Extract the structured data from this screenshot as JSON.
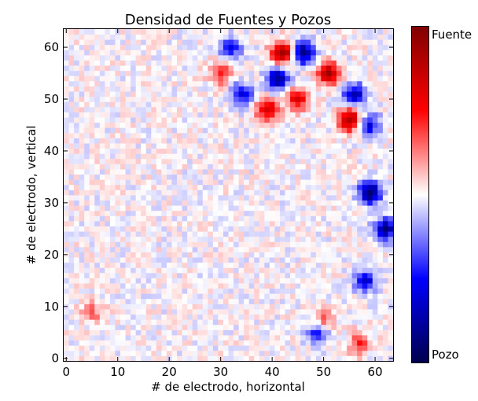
{
  "chart_data": {
    "type": "heatmap",
    "title": "Densidad de Fuentes y Pozos",
    "xlabel": "# de electrodo, horizontal",
    "ylabel": "# de electrodo, vertical",
    "xlim": [
      -0.5,
      63.5
    ],
    "ylim": [
      -0.5,
      63.5
    ],
    "grid_size": [
      64,
      64
    ],
    "x_ticks": [
      0,
      10,
      20,
      30,
      40,
      50,
      60
    ],
    "y_ticks": [
      0,
      10,
      20,
      30,
      40,
      50,
      60
    ],
    "colormap": "seismic",
    "colorbar": {
      "position": "right",
      "max_label": "Fuente",
      "min_label": "Pozo",
      "colors": [
        "#00004c",
        "#0000ff",
        "#ffffff",
        "#ff0000",
        "#800000"
      ]
    },
    "features": [
      {
        "kind": "fuente",
        "x": 42,
        "y": 59,
        "intensity": 0.95
      },
      {
        "kind": "pozo",
        "x": 46,
        "y": 59,
        "intensity": 0.85
      },
      {
        "kind": "pozo",
        "x": 41,
        "y": 54,
        "intensity": 0.8
      },
      {
        "kind": "fuente",
        "x": 51,
        "y": 55,
        "intensity": 0.85
      },
      {
        "kind": "fuente",
        "x": 55,
        "y": 46,
        "intensity": 0.9
      },
      {
        "kind": "fuente",
        "x": 39,
        "y": 48,
        "intensity": 0.7
      },
      {
        "kind": "fuente",
        "x": 45,
        "y": 50,
        "intensity": 0.6
      },
      {
        "kind": "pozo",
        "x": 34,
        "y": 51,
        "intensity": 0.6
      },
      {
        "kind": "pozo",
        "x": 32,
        "y": 60,
        "intensity": 0.5
      },
      {
        "kind": "fuente",
        "x": 30,
        "y": 55,
        "intensity": 0.45
      },
      {
        "kind": "pozo",
        "x": 56,
        "y": 51,
        "intensity": 0.7
      },
      {
        "kind": "pozo",
        "x": 59,
        "y": 45,
        "intensity": 0.55
      },
      {
        "kind": "pozo",
        "x": 59,
        "y": 32,
        "intensity": 0.95
      },
      {
        "kind": "pozo",
        "x": 62,
        "y": 25,
        "intensity": 0.8
      },
      {
        "kind": "pozo",
        "x": 58,
        "y": 15,
        "intensity": 0.6
      },
      {
        "kind": "pozo",
        "x": 49,
        "y": 5,
        "intensity": 0.55
      },
      {
        "kind": "fuente",
        "x": 50,
        "y": 7,
        "intensity": 0.4
      },
      {
        "kind": "fuente",
        "x": 57,
        "y": 3,
        "intensity": 0.4
      },
      {
        "kind": "fuente",
        "x": 5,
        "y": 9,
        "intensity": 0.3
      }
    ]
  }
}
